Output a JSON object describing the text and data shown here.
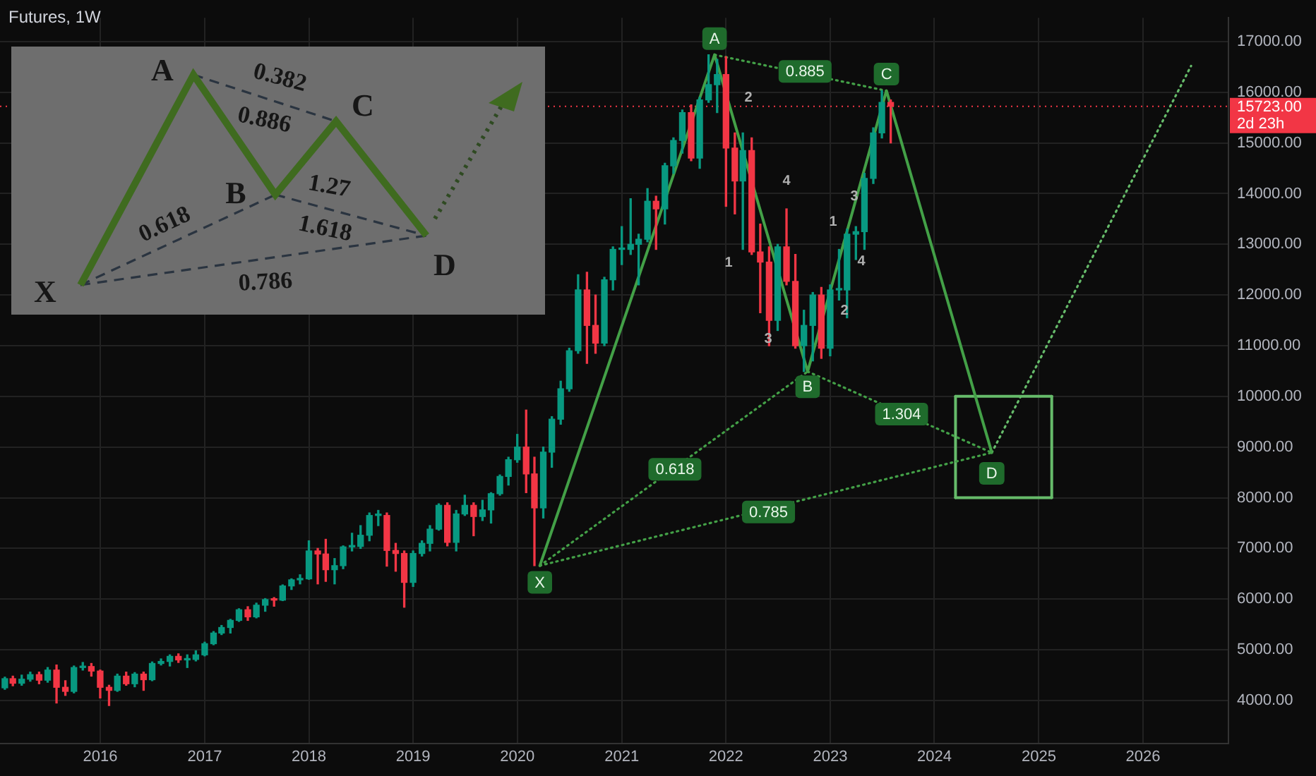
{
  "chart_data": {
    "type": "candlestick",
    "title": "Futures, 1W",
    "x": [
      "2015-02",
      "2015-03",
      "2015-04",
      "2015-05",
      "2015-06",
      "2015-07",
      "2015-08",
      "2015-09",
      "2015-10",
      "2015-11",
      "2015-12",
      "2016-01",
      "2016-02",
      "2016-03",
      "2016-04",
      "2016-05",
      "2016-06",
      "2016-07",
      "2016-08",
      "2016-09",
      "2016-10",
      "2016-11",
      "2016-12",
      "2017-01",
      "2017-02",
      "2017-03",
      "2017-04",
      "2017-05",
      "2017-06",
      "2017-07",
      "2017-08",
      "2017-09",
      "2017-10",
      "2017-11",
      "2017-12",
      "2018-01",
      "2018-02",
      "2018-03",
      "2018-04",
      "2018-05",
      "2018-06",
      "2018-07",
      "2018-08",
      "2018-09",
      "2018-10",
      "2018-11",
      "2018-12",
      "2019-01",
      "2019-02",
      "2019-03",
      "2019-04",
      "2019-05",
      "2019-06",
      "2019-07",
      "2019-08",
      "2019-09",
      "2019-10",
      "2019-11",
      "2019-12",
      "2020-01",
      "2020-02",
      "2020-03",
      "2020-04",
      "2020-05",
      "2020-06",
      "2020-07",
      "2020-08",
      "2020-09",
      "2020-10",
      "2020-11",
      "2020-12",
      "2021-01",
      "2021-02",
      "2021-03",
      "2021-04",
      "2021-05",
      "2021-06",
      "2021-07",
      "2021-08",
      "2021-09",
      "2021-10",
      "2021-11",
      "2021-12",
      "2022-01",
      "2022-02",
      "2022-03",
      "2022-04",
      "2022-05",
      "2022-06",
      "2022-07",
      "2022-08",
      "2022-09",
      "2022-10",
      "2022-11",
      "2022-12",
      "2023-01",
      "2023-02",
      "2023-03",
      "2023-04",
      "2023-05",
      "2023-06",
      "2023-07",
      "2023-08"
    ],
    "ohlc": [
      [
        4250,
        4460,
        4220,
        4430
      ],
      [
        4430,
        4480,
        4290,
        4340
      ],
      [
        4340,
        4500,
        4300,
        4420
      ],
      [
        4420,
        4560,
        4380,
        4510
      ],
      [
        4510,
        4560,
        4330,
        4400
      ],
      [
        4400,
        4650,
        4360,
        4600
      ],
      [
        4600,
        4700,
        3950,
        4260
      ],
      [
        4260,
        4390,
        4100,
        4180
      ],
      [
        4180,
        4680,
        4150,
        4650
      ],
      [
        4650,
        4750,
        4600,
        4670
      ],
      [
        4670,
        4730,
        4480,
        4580
      ],
      [
        4580,
        4600,
        4050,
        4260
      ],
      [
        4260,
        4300,
        3900,
        4200
      ],
      [
        4200,
        4520,
        4180,
        4480
      ],
      [
        4480,
        4560,
        4300,
        4330
      ],
      [
        4330,
        4550,
        4270,
        4520
      ],
      [
        4520,
        4560,
        4200,
        4410
      ],
      [
        4410,
        4760,
        4390,
        4730
      ],
      [
        4730,
        4820,
        4700,
        4770
      ],
      [
        4770,
        4900,
        4680,
        4870
      ],
      [
        4870,
        4920,
        4750,
        4800
      ],
      [
        4800,
        4900,
        4650,
        4810
      ],
      [
        4810,
        4980,
        4780,
        4900
      ],
      [
        4900,
        5150,
        4880,
        5120
      ],
      [
        5120,
        5360,
        5100,
        5330
      ],
      [
        5330,
        5480,
        5300,
        5440
      ],
      [
        5440,
        5600,
        5330,
        5580
      ],
      [
        5580,
        5810,
        5560,
        5790
      ],
      [
        5790,
        5850,
        5580,
        5650
      ],
      [
        5650,
        5920,
        5630,
        5880
      ],
      [
        5880,
        6010,
        5760,
        5990
      ],
      [
        5990,
        6030,
        5860,
        5980
      ],
      [
        5980,
        6280,
        5970,
        6260
      ],
      [
        6260,
        6400,
        6190,
        6380
      ],
      [
        6380,
        6480,
        6300,
        6400
      ],
      [
        6400,
        7150,
        6390,
        6950
      ],
      [
        6950,
        7000,
        6300,
        6890
      ],
      [
        6890,
        7180,
        6350,
        6580
      ],
      [
        6580,
        6800,
        6300,
        6660
      ],
      [
        6660,
        7050,
        6600,
        7030
      ],
      [
        7030,
        7300,
        6950,
        7040
      ],
      [
        7040,
        7450,
        7000,
        7260
      ],
      [
        7260,
        7700,
        7150,
        7650
      ],
      [
        7650,
        7750,
        7450,
        7650
      ],
      [
        7650,
        7700,
        6650,
        6960
      ],
      [
        6960,
        7100,
        6550,
        6900
      ],
      [
        6900,
        6950,
        5840,
        6330
      ],
      [
        6330,
        6950,
        6250,
        6900
      ],
      [
        6900,
        7150,
        6850,
        7100
      ],
      [
        7100,
        7450,
        6950,
        7380
      ],
      [
        7380,
        7880,
        7360,
        7850
      ],
      [
        7850,
        7900,
        7050,
        7120
      ],
      [
        7120,
        7750,
        6950,
        7680
      ],
      [
        7680,
        8050,
        7650,
        7850
      ],
      [
        7850,
        7900,
        7250,
        7630
      ],
      [
        7630,
        7950,
        7550,
        7760
      ],
      [
        7760,
        8100,
        7500,
        8080
      ],
      [
        8080,
        8450,
        8050,
        8420
      ],
      [
        8420,
        8800,
        8250,
        8750
      ],
      [
        8750,
        9250,
        8700,
        9000
      ],
      [
        9000,
        9730,
        8100,
        8470
      ],
      [
        8470,
        8800,
        6660,
        7800
      ],
      [
        7800,
        9000,
        7600,
        8900
      ],
      [
        8900,
        9600,
        8600,
        9550
      ],
      [
        9550,
        10300,
        9450,
        10150
      ],
      [
        10150,
        10950,
        10100,
        10900
      ],
      [
        10900,
        12400,
        10850,
        12100
      ],
      [
        12100,
        12450,
        10650,
        11400
      ],
      [
        11400,
        12000,
        10850,
        11050
      ],
      [
        11050,
        12350,
        11000,
        12300
      ],
      [
        12300,
        12950,
        12100,
        12900
      ],
      [
        12900,
        13350,
        12600,
        12900
      ],
      [
        12900,
        13900,
        12800,
        13000
      ],
      [
        13000,
        13200,
        12200,
        13100
      ],
      [
        13100,
        14100,
        13050,
        13850
      ],
      [
        13850,
        13950,
        12900,
        13700
      ],
      [
        13700,
        14600,
        13400,
        14550
      ],
      [
        14550,
        15100,
        14400,
        15050
      ],
      [
        15050,
        15650,
        14800,
        15600
      ],
      [
        15600,
        15750,
        14650,
        14700
      ],
      [
        14700,
        15900,
        14500,
        15850
      ],
      [
        15850,
        16740,
        15800,
        16150
      ],
      [
        16150,
        16650,
        15600,
        16350
      ],
      [
        16350,
        16700,
        13750,
        14900
      ],
      [
        14900,
        15200,
        13600,
        14250
      ],
      [
        14250,
        15200,
        12900,
        14850
      ],
      [
        14850,
        15100,
        12800,
        12850
      ],
      [
        12850,
        13400,
        11650,
        12650
      ],
      [
        12650,
        12950,
        11000,
        11500
      ],
      [
        11500,
        13000,
        11300,
        12950
      ],
      [
        12950,
        13700,
        12200,
        12270
      ],
      [
        12270,
        12800,
        10950,
        11000
      ],
      [
        11000,
        11700,
        10490,
        11400
      ],
      [
        11400,
        12050,
        10700,
        12000
      ],
      [
        12000,
        12150,
        10750,
        10950
      ],
      [
        10950,
        12200,
        10800,
        12100
      ],
      [
        12100,
        12900,
        11900,
        12100
      ],
      [
        12100,
        13300,
        11550,
        13200
      ],
      [
        13200,
        13350,
        12700,
        13250
      ],
      [
        13250,
        14400,
        12900,
        14300
      ],
      [
        14300,
        15300,
        14200,
        15200
      ],
      [
        15200,
        16030,
        15100,
        15800
      ],
      [
        15800,
        15850,
        15000,
        15723
      ]
    ],
    "colors": [
      "#089981",
      "#f23645",
      "#089981",
      "#089981",
      "#f23645",
      "#089981",
      "#f23645",
      "#f23645",
      "#089981",
      "#089981",
      "#f23645",
      "#f23645",
      "#f23645",
      "#089981",
      "#f23645",
      "#089981",
      "#f23645",
      "#089981",
      "#089981",
      "#089981",
      "#f23645",
      "#089981",
      "#089981",
      "#089981",
      "#089981",
      "#089981",
      "#089981",
      "#089981",
      "#f23645",
      "#089981",
      "#089981",
      "#f23645",
      "#089981",
      "#089981",
      "#089981",
      "#089981",
      "#f23645",
      "#f23645",
      "#089981",
      "#089981",
      "#089981",
      "#089981",
      "#089981",
      "#089981",
      "#f23645",
      "#f23645",
      "#f23645",
      "#089981",
      "#089981",
      "#089981",
      "#089981",
      "#f23645",
      "#089981",
      "#089981",
      "#f23645",
      "#089981",
      "#089981",
      "#089981",
      "#089981",
      "#089981",
      "#f23645",
      "#f23645",
      "#089981",
      "#089981",
      "#089981",
      "#089981",
      "#089981",
      "#f23645",
      "#f23645",
      "#089981",
      "#089981",
      "#089981",
      "#089981",
      "#089981",
      "#089981",
      "#f23645",
      "#089981",
      "#089981",
      "#089981",
      "#f23645",
      "#089981",
      "#089981",
      "#089981",
      "#f23645",
      "#f23645",
      "#089981",
      "#f23645",
      "#f23645",
      "#f23645",
      "#089981",
      "#f23645",
      "#f23645",
      "#089981",
      "#089981",
      "#f23645",
      "#089981",
      "#089981",
      "#089981",
      "#089981",
      "#089981",
      "#089981",
      "#089981",
      "#f23645"
    ],
    "series": [
      {
        "type": "line",
        "color": "#43a047",
        "line_style": "solid",
        "x": [
          "2020-03-20",
          "2021-11-22",
          "2022-10-14",
          "2023-07-17",
          "2024-07-20"
        ],
        "values": [
          6660,
          16740,
          10490,
          16030,
          8890
        ]
      },
      {
        "type": "line",
        "color": "#43a047",
        "line_style": "dotted",
        "x": [
          "2020-03-20",
          "2022-10-14"
        ],
        "values": [
          6660,
          10490
        ]
      },
      {
        "type": "line",
        "color": "#43a047",
        "line_style": "dotted",
        "x": [
          "2021-11-22",
          "2023-07-17"
        ],
        "values": [
          16740,
          16030
        ]
      },
      {
        "type": "line",
        "color": "#43a047",
        "line_style": "dotted",
        "x": [
          "2022-10-14",
          "2024-07-20"
        ],
        "values": [
          10490,
          8890
        ]
      },
      {
        "type": "line",
        "color": "#43a047",
        "line_style": "dotted",
        "x": [
          "2020-03-20",
          "2024-07-20"
        ],
        "values": [
          6660,
          8890
        ]
      },
      {
        "type": "line",
        "color": "#66bb6a",
        "line_style": "dotted",
        "x": [
          "2024-07-20",
          "2026-06-18"
        ],
        "values": [
          8890,
          16520
        ]
      },
      {
        "type": "line",
        "color": "#66bb6a",
        "line_style": "solid",
        "x": [
          "2024-03-15",
          "2025-02-15"
        ],
        "values": [
          10000,
          10000
        ]
      },
      {
        "type": "line",
        "color": "#66bb6a",
        "line_style": "solid",
        "x": [
          "2024-03-15",
          "2025-02-15"
        ],
        "values": [
          8000,
          8000
        ]
      },
      {
        "type": "line",
        "color": "#66bb6a",
        "line_style": "solid",
        "x": [
          "2024-03-15",
          "2024-03-15"
        ],
        "values": [
          8000,
          10000
        ]
      },
      {
        "type": "line",
        "color": "#66bb6a",
        "line_style": "solid",
        "x": [
          "2025-02-15",
          "2025-02-15"
        ],
        "values": [
          8000,
          10000
        ]
      }
    ],
    "ref_lines": [
      {
        "axis": "y",
        "value": 15723,
        "label": "15723.00",
        "color": "#f23645",
        "line_style": "dotted"
      }
    ],
    "annotations": [
      {
        "text": "A",
        "x": "2021-11-22",
        "y": 17060
      },
      {
        "text": "C",
        "x": "2023-07-17",
        "y": 16360
      },
      {
        "text": "B",
        "x": "2022-10-14",
        "y": 10190
      },
      {
        "text": "X",
        "x": "2020-03-20",
        "y": 6330
      },
      {
        "text": "D",
        "x": "2024-07-20",
        "y": 8480
      },
      {
        "text": "0.885",
        "x": "2022-10-05",
        "y": 16410
      },
      {
        "text": "1.304",
        "x": "2023-09-08",
        "y": 9650
      },
      {
        "text": "0.618",
        "x": "2021-07-06",
        "y": 8560
      },
      {
        "text": "0.785",
        "x": "2022-05-30",
        "y": 7720
      },
      "2",
      "4",
      "1",
      "3",
      "3",
      "1",
      "4",
      "2",
      "2d 23h",
      "X",
      "A",
      "B",
      "C",
      "D",
      "0.382",
      "0.886",
      "0.618",
      "1.27",
      "1.618",
      "0.786"
    ],
    "xlim": [
      "2015-01-15",
      "2026-10-27"
    ],
    "xticks": [
      "2016",
      "2017",
      "2018",
      "2019",
      "2020",
      "2021",
      "2022",
      "2023",
      "2024",
      "2025",
      "2026"
    ],
    "ylim": [
      3150,
      17470
    ],
    "yticks": [
      {
        "value": 4000,
        "label": "4000.00"
      },
      {
        "value": 5000,
        "label": "5000.00"
      },
      {
        "value": 6000,
        "label": "6000.00"
      },
      {
        "value": 7000,
        "label": "7000.00"
      },
      {
        "value": 8000,
        "label": "8000.00"
      },
      {
        "value": 9000,
        "label": "9000.00"
      },
      {
        "value": 10000,
        "label": "10000.00"
      },
      {
        "value": 11000,
        "label": "11000.00"
      },
      {
        "value": 12000,
        "label": "12000.00"
      },
      {
        "value": 13000,
        "label": "13000.00"
      },
      {
        "value": 14000,
        "label": "14000.00"
      },
      {
        "value": 15000,
        "label": "15000.00"
      },
      {
        "value": 16000,
        "label": "16000.00"
      },
      {
        "value": 17000,
        "label": "17000.00"
      }
    ],
    "grid": true,
    "legend": false,
    "marker": "none"
  }
}
